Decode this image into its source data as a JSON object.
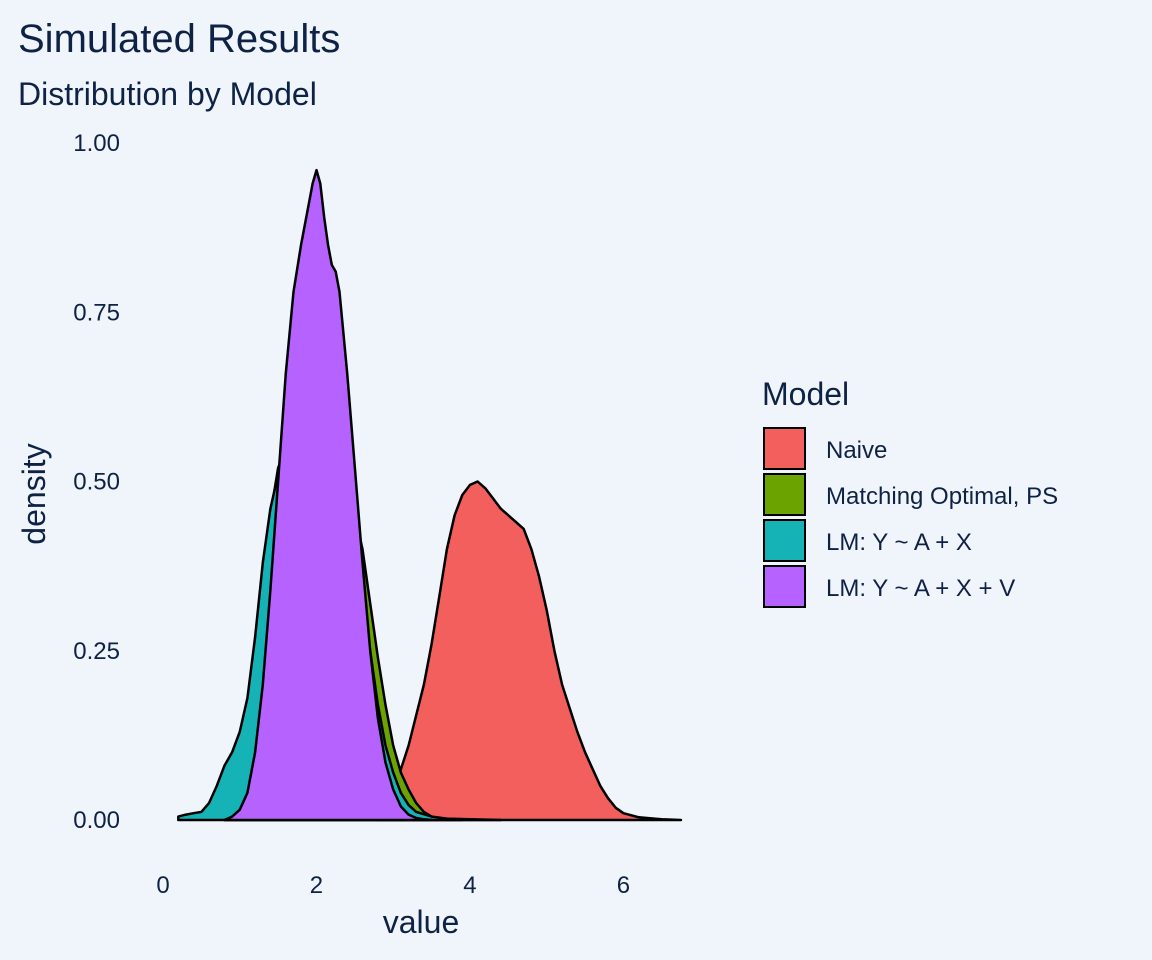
{
  "chart_data": {
    "type": "area",
    "subtype": "density",
    "title": "Simulated Results",
    "subtitle": "Distribution by Model",
    "xlabel": "value",
    "ylabel": "density",
    "xlim": [
      0,
      6.75
    ],
    "ylim": [
      0,
      1.0
    ],
    "xticks": [
      0,
      2,
      4,
      6
    ],
    "yticks": [
      "0.00",
      "0.25",
      "0.50",
      "0.75",
      "1.00"
    ],
    "grid": false,
    "legend": {
      "title": "Model",
      "position": "right"
    },
    "series": [
      {
        "name": "Naive",
        "color": "#F25F5C",
        "points": [
          [
            2.8,
            0.0
          ],
          [
            3.0,
            0.04
          ],
          [
            3.2,
            0.11
          ],
          [
            3.4,
            0.2
          ],
          [
            3.5,
            0.26
          ],
          [
            3.6,
            0.33
          ],
          [
            3.7,
            0.4
          ],
          [
            3.8,
            0.45
          ],
          [
            3.9,
            0.48
          ],
          [
            4.0,
            0.495
          ],
          [
            4.1,
            0.5
          ],
          [
            4.2,
            0.49
          ],
          [
            4.3,
            0.475
          ],
          [
            4.4,
            0.46
          ],
          [
            4.5,
            0.45
          ],
          [
            4.6,
            0.44
          ],
          [
            4.7,
            0.43
          ],
          [
            4.8,
            0.4
          ],
          [
            4.9,
            0.36
          ],
          [
            5.0,
            0.31
          ],
          [
            5.1,
            0.25
          ],
          [
            5.2,
            0.2
          ],
          [
            5.3,
            0.165
          ],
          [
            5.4,
            0.13
          ],
          [
            5.5,
            0.1
          ],
          [
            5.6,
            0.075
          ],
          [
            5.7,
            0.05
          ],
          [
            5.8,
            0.032
          ],
          [
            5.9,
            0.018
          ],
          [
            6.0,
            0.01
          ],
          [
            6.2,
            0.004
          ],
          [
            6.4,
            0.002
          ],
          [
            6.5,
            0.001
          ],
          [
            6.75,
            0.0
          ]
        ]
      },
      {
        "name": "Matching Optimal, PS",
        "color": "#6BA300",
        "points": [
          [
            0.8,
            0.0
          ],
          [
            0.9,
            0.01
          ],
          [
            1.0,
            0.03
          ],
          [
            1.1,
            0.08
          ],
          [
            1.2,
            0.2
          ],
          [
            1.3,
            0.35
          ],
          [
            1.4,
            0.45
          ],
          [
            1.5,
            0.52
          ],
          [
            1.6,
            0.55
          ],
          [
            1.7,
            0.555
          ],
          [
            1.8,
            0.555
          ],
          [
            1.9,
            0.55
          ],
          [
            2.0,
            0.55
          ],
          [
            2.1,
            0.55
          ],
          [
            2.2,
            0.545
          ],
          [
            2.3,
            0.53
          ],
          [
            2.4,
            0.5
          ],
          [
            2.5,
            0.45
          ],
          [
            2.6,
            0.4
          ],
          [
            2.7,
            0.32
          ],
          [
            2.8,
            0.24
          ],
          [
            2.9,
            0.17
          ],
          [
            3.0,
            0.11
          ],
          [
            3.1,
            0.07
          ],
          [
            3.2,
            0.045
          ],
          [
            3.3,
            0.025
          ],
          [
            3.4,
            0.012
          ],
          [
            3.5,
            0.005
          ],
          [
            3.7,
            0.001
          ],
          [
            3.9,
            0.0
          ]
        ]
      },
      {
        "name": "LM: Y ~ A + X",
        "color": "#16B3B6",
        "points": [
          [
            0.2,
            0.005
          ],
          [
            0.3,
            0.008
          ],
          [
            0.4,
            0.01
          ],
          [
            0.5,
            0.012
          ],
          [
            0.6,
            0.025
          ],
          [
            0.7,
            0.05
          ],
          [
            0.8,
            0.08
          ],
          [
            0.9,
            0.1
          ],
          [
            1.0,
            0.13
          ],
          [
            1.1,
            0.18
          ],
          [
            1.2,
            0.27
          ],
          [
            1.3,
            0.38
          ],
          [
            1.4,
            0.46
          ],
          [
            1.5,
            0.51
          ],
          [
            1.6,
            0.545
          ],
          [
            1.7,
            0.555
          ],
          [
            1.8,
            0.555
          ],
          [
            1.9,
            0.55
          ],
          [
            2.0,
            0.55
          ],
          [
            2.1,
            0.545
          ],
          [
            2.2,
            0.535
          ],
          [
            2.3,
            0.51
          ],
          [
            2.4,
            0.47
          ],
          [
            2.5,
            0.41
          ],
          [
            2.6,
            0.33
          ],
          [
            2.7,
            0.25
          ],
          [
            2.8,
            0.17
          ],
          [
            2.9,
            0.11
          ],
          [
            3.0,
            0.07
          ],
          [
            3.1,
            0.04
          ],
          [
            3.2,
            0.022
          ],
          [
            3.3,
            0.012
          ],
          [
            3.5,
            0.005
          ],
          [
            3.7,
            0.002
          ],
          [
            4.0,
            0.001
          ],
          [
            4.4,
            0.0
          ]
        ]
      },
      {
        "name": "LM: Y ~ A + X + V",
        "color": "#B662FF",
        "points": [
          [
            0.8,
            0.0
          ],
          [
            0.9,
            0.005
          ],
          [
            1.0,
            0.015
          ],
          [
            1.1,
            0.04
          ],
          [
            1.2,
            0.1
          ],
          [
            1.3,
            0.2
          ],
          [
            1.4,
            0.34
          ],
          [
            1.5,
            0.5
          ],
          [
            1.6,
            0.66
          ],
          [
            1.7,
            0.78
          ],
          [
            1.8,
            0.85
          ],
          [
            1.9,
            0.91
          ],
          [
            1.95,
            0.94
          ],
          [
            2.0,
            0.96
          ],
          [
            2.05,
            0.94
          ],
          [
            2.1,
            0.89
          ],
          [
            2.15,
            0.85
          ],
          [
            2.2,
            0.82
          ],
          [
            2.25,
            0.81
          ],
          [
            2.3,
            0.78
          ],
          [
            2.4,
            0.66
          ],
          [
            2.5,
            0.52
          ],
          [
            2.6,
            0.38
          ],
          [
            2.7,
            0.25
          ],
          [
            2.8,
            0.15
          ],
          [
            2.9,
            0.085
          ],
          [
            3.0,
            0.045
          ],
          [
            3.1,
            0.02
          ],
          [
            3.2,
            0.008
          ],
          [
            3.3,
            0.003
          ],
          [
            3.4,
            0.001
          ],
          [
            3.5,
            0.0
          ]
        ]
      }
    ]
  }
}
